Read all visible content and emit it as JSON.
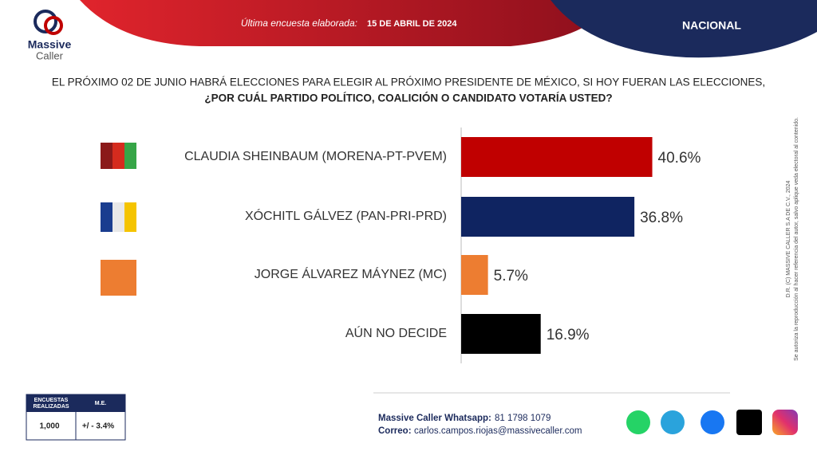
{
  "header": {
    "brand_line1": "Massive",
    "brand_line2": "Caller",
    "survey_label": "Última encuesta elaborada:",
    "survey_date": "15 DE ABRIL DE 2024",
    "scope": "NACIONAL"
  },
  "chart_data": {
    "type": "bar",
    "orientation": "horizontal",
    "title": "EL PRÓXIMO 02 DE JUNIO HABRÁ ELECCIONES PARA ELEGIR AL PRÓXIMO PRESIDENTE DE MÉXICO, SI HOY FUERAN LAS ELECCIONES,",
    "subtitle": "¿POR CUÁL PARTIDO POLÍTICO, COALICIÓN O CANDIDATO VOTARÍA USTED?",
    "categories": [
      "CLAUDIA SHEINBAUM (MORENA-PT-PVEM)",
      "XÓCHITL GÁLVEZ (PAN-PRI-PRD)",
      "JORGE ÁLVAREZ MÁYNEZ (MC)",
      "AÚN NO DECIDE"
    ],
    "values": [
      40.6,
      36.8,
      5.7,
      16.9
    ],
    "value_labels": [
      "40.6%",
      "36.8%",
      "5.7%",
      "16.9%"
    ],
    "colors": [
      "#c00000",
      "#0f2461",
      "#ed7d31",
      "#000000"
    ]
  },
  "stats": {
    "headers": [
      "ENCUESTAS REALIZADAS",
      "M.E."
    ],
    "values": [
      "1,000",
      "+/ - 3.4%"
    ]
  },
  "footer": {
    "whatsapp_label": "Massive Caller Whatsapp:",
    "whatsapp_number": "81 1798 1079",
    "email_label": "Correo:",
    "email": "carlos.campos.riojas@massivecaller.com"
  },
  "side_note": {
    "copyright": "D.R. (C) MASSIVE CALLER S.A DE C.V., 2024",
    "permission": "Se autoriza la reproducción al hacer referencia del autor, salvo aplique veda electoral al contenido."
  }
}
